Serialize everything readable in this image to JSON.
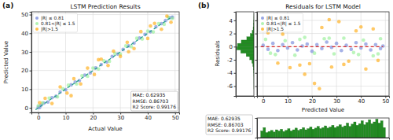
{
  "chart_data": [
    {
      "type": "scatter",
      "label": "(a)",
      "title": "LSTM Prediction Results",
      "x_label": "Actual Value",
      "y_label": "Predicted Value",
      "xlim": [
        -2.5,
        51.5
      ],
      "ylim": [
        -2.5,
        51.5
      ],
      "xticks": [
        0,
        10,
        20,
        30,
        40,
        50
      ],
      "yticks": [
        0,
        10,
        20,
        30,
        40,
        50
      ],
      "grid": true,
      "legend": "upper left",
      "marker": "o",
      "annotations": [
        "MAE: 0.62935",
        "RMSE: 0.86703",
        "R2 Score: 0.99176"
      ],
      "series": [
        {
          "name": "|R| ≤ 0.81",
          "color": "#6b7fd7",
          "x": [
            0,
            0.5,
            1,
            2,
            3.5,
            5,
            6.5,
            8,
            10,
            12,
            13.5,
            15,
            17,
            19,
            21,
            23,
            25,
            27,
            29,
            31,
            33,
            35,
            37,
            39,
            41,
            43,
            45,
            46.5,
            48,
            49
          ],
          "values": [
            0.3,
            0.2,
            1.4,
            2.5,
            3.1,
            5.4,
            6.2,
            8.5,
            9.7,
            12.3,
            13.8,
            14.6,
            17.5,
            18.7,
            21.4,
            23.2,
            24.6,
            27.5,
            28.8,
            31.3,
            33.2,
            34.7,
            37.4,
            39.3,
            40.8,
            43.5,
            45.2,
            46.8,
            48.3,
            48.6
          ]
        },
        {
          "name": "0.81<|R| ≤ 1.5",
          "color": "#90ee90",
          "x": [
            0,
            1.5,
            4,
            7,
            9,
            11,
            14,
            16,
            18,
            20,
            22,
            24,
            26,
            28,
            30,
            32,
            34,
            36,
            38,
            40,
            42,
            44,
            46,
            47.5,
            49
          ],
          "values": [
            1.1,
            2.6,
            5.2,
            5.9,
            10.2,
            12.1,
            12.8,
            17.2,
            16.9,
            21.3,
            20.8,
            25.2,
            24.9,
            29.1,
            28.8,
            33.2,
            32.8,
            37.3,
            36.9,
            41.1,
            40.7,
            45.2,
            44.8,
            48.6,
            47.9
          ]
        },
        {
          "name": "|R|>1.5",
          "color": "#ffa500",
          "x": [
            0.5,
            2.5,
            5,
            8,
            10.5,
            13,
            15.5,
            18,
            20.5,
            23,
            25.5,
            27.5,
            30,
            32.5,
            35,
            37.5,
            40,
            42.5,
            45,
            47,
            48.5,
            12,
            22,
            33,
            41
          ],
          "values": [
            2.8,
            5.1,
            2.3,
            11.2,
            7.9,
            15.6,
            12.8,
            21.3,
            17.9,
            26.1,
            22.7,
            30.4,
            27.6,
            35.1,
            31.8,
            40.9,
            37.2,
            45.3,
            42.1,
            49.2,
            45.9,
            6.5,
            25.8,
            30.1,
            43.9
          ]
        },
        {
          "type": "line",
          "line_style": "dashed",
          "color": "#1f9e89",
          "x": [
            -1,
            49
          ],
          "values": [
            -1,
            49
          ]
        }
      ]
    },
    {
      "type": "scatter",
      "label": "(b)",
      "title": "Residuals for LSTM Model",
      "x_label": "Predicted Value",
      "xlim": [
        -2.5,
        51.5
      ],
      "ylim": [
        -7.5,
        5.3
      ],
      "xticks": [
        0,
        10,
        20,
        30,
        40,
        50
      ],
      "yticks": [
        -6,
        -4,
        -2,
        0,
        2,
        4
      ],
      "tick_labels": "x",
      "grid": true,
      "legend": "upper left",
      "marker": "o",
      "annotations": [
        "MAE: 0.62935",
        "RMSE: 0.86703",
        "R2 Score: 0.99176"
      ],
      "series": [
        {
          "name": "|R| ≤ 0.81",
          "color": "#6b7fd7",
          "x": [
            0,
            2,
            4,
            6,
            8,
            10,
            12,
            14,
            16,
            18,
            20,
            22,
            24,
            26,
            28,
            30,
            32,
            34,
            36,
            38,
            40,
            42,
            44,
            46,
            48,
            49
          ],
          "values": [
            0.2,
            -0.4,
            0.5,
            -0.6,
            0.3,
            -0.2,
            0.6,
            -0.5,
            0.1,
            0.4,
            -0.7,
            0.3,
            -0.3,
            0.7,
            -0.1,
            0.5,
            -0.6,
            0.2,
            -0.4,
            0.6,
            -0.2,
            0.4,
            -0.5,
            0.3,
            -0.3,
            0.1
          ]
        },
        {
          "name": "0.81<|R| ≤ 1.5",
          "color": "#90ee90",
          "x": [
            1,
            5,
            9,
            13,
            17,
            21,
            25,
            29,
            33,
            37,
            41,
            45,
            48,
            3,
            15,
            27,
            39,
            47
          ],
          "values": [
            1.1,
            -1.2,
            0.9,
            -1.3,
            1.4,
            -1.0,
            1.2,
            -1.1,
            1.3,
            -0.9,
            1.0,
            -1.4,
            1.2,
            -1.0,
            1.1,
            1.3,
            -1.2,
            -1.1
          ]
        },
        {
          "name": "|R|>1.5",
          "color": "#ffa500",
          "x": [
            2,
            6,
            11,
            15,
            19,
            21,
            24,
            28,
            31,
            35,
            38,
            42,
            45,
            47,
            17,
            23,
            27,
            33,
            8,
            40
          ],
          "values": [
            2.1,
            -2.5,
            -3.2,
            -2.8,
            -2.6,
            -5.6,
            2.9,
            -3.1,
            3.8,
            -2.2,
            2.4,
            -3.4,
            2.7,
            -2.1,
            -4.2,
            -6.4,
            4.1,
            -2.7,
            1.9,
            3.0
          ]
        },
        {
          "type": "line",
          "line_style": "dashed",
          "color": "#d62728",
          "x": [
            -1,
            49
          ],
          "values": [
            0,
            0
          ]
        }
      ]
    },
    {
      "type": "histogram",
      "orientation": "horizontal",
      "y_label": "Residuals",
      "color": "#228b22",
      "xlim": [
        0,
        1650
      ],
      "ylim": [
        -7.5,
        5.3
      ],
      "yticks": [
        -6,
        -4,
        -2,
        0,
        2,
        4
      ],
      "tick_labels": "y",
      "bins": [
        -7.5,
        -7,
        -6.5,
        -6,
        -5.5,
        -5,
        -4.5,
        -4,
        -3.5,
        -3,
        -2.5,
        -2,
        -1.5,
        -1,
        -0.5,
        0,
        0.5,
        1,
        1.5,
        2,
        2.5,
        3,
        3.5,
        4,
        4.5,
        5
      ],
      "counts": [
        0,
        0,
        1,
        2,
        3,
        5,
        10,
        20,
        45,
        90,
        180,
        380,
        700,
        1200,
        1550,
        1500,
        1150,
        650,
        330,
        150,
        70,
        30,
        12,
        5,
        2
      ]
    },
    {
      "type": "histogram",
      "color": "#228b22",
      "xlim": [
        -2.5,
        51.5
      ],
      "ylim": [
        0,
        350
      ],
      "tick_labels": false,
      "bins": [
        -1,
        0,
        1,
        2,
        3,
        4,
        5,
        6,
        7,
        8,
        9,
        10,
        11,
        12,
        13,
        14,
        15,
        16,
        17,
        18,
        19,
        20,
        21,
        22,
        23,
        24,
        25,
        26,
        27,
        28,
        29,
        30,
        31,
        32,
        33,
        34,
        35,
        36,
        37,
        38,
        39,
        40,
        41,
        42,
        43,
        44,
        45,
        46,
        47,
        48,
        49,
        50
      ],
      "counts": [
        120,
        180,
        90,
        110,
        130,
        100,
        140,
        120,
        150,
        110,
        130,
        160,
        120,
        140,
        170,
        130,
        150,
        180,
        140,
        160,
        190,
        150,
        170,
        200,
        160,
        180,
        210,
        170,
        190,
        220,
        180,
        200,
        230,
        190,
        210,
        260,
        200,
        240,
        280,
        220,
        250,
        300,
        230,
        270,
        320,
        250,
        280,
        330,
        260,
        300,
        180
      ]
    }
  ]
}
